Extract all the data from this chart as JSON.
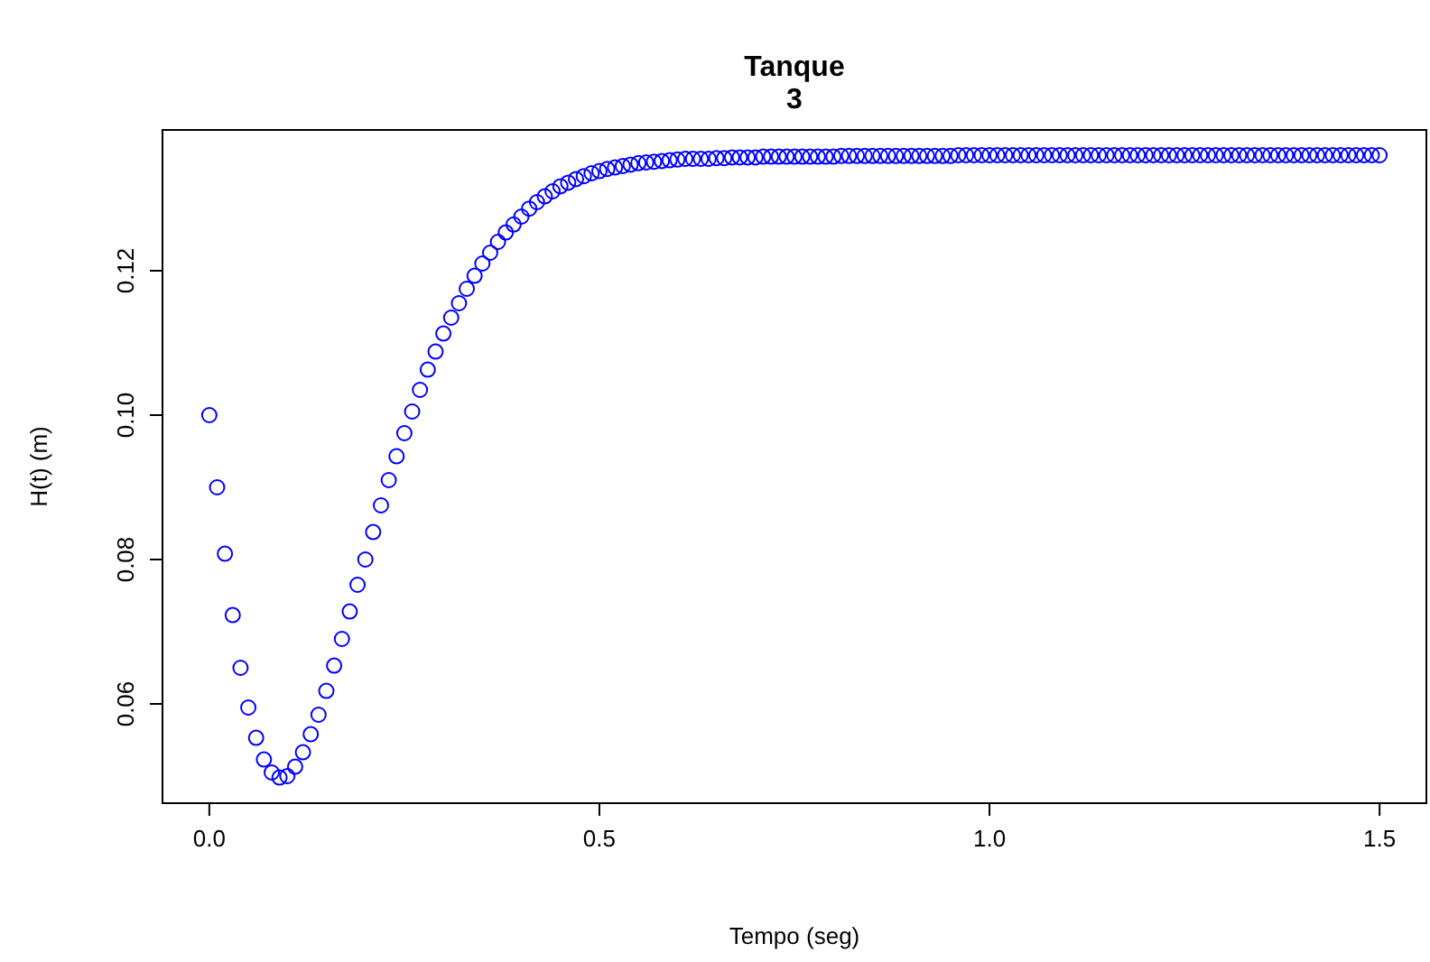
{
  "chart_data": {
    "type": "scatter",
    "title": "Tanque\n3",
    "xlabel": "Tempo (seg)",
    "ylabel": "H(t) (m)",
    "marker": "circle",
    "grid": false,
    "xlim": [
      -0.06,
      1.56
    ],
    "ylim": [
      0.04625,
      0.1395
    ],
    "xticks": [
      {
        "value": 0,
        "label": "0.0"
      },
      0.5,
      {
        "value": 1,
        "label": "1.0"
      },
      1.5
    ],
    "yticks": [
      0.06,
      0.08,
      {
        "value": 0.1,
        "label": "0.10"
      },
      0.12
    ],
    "x": [
      0,
      0.01,
      0.02,
      0.03,
      0.04,
      0.05,
      0.06,
      0.07,
      0.08,
      0.09,
      0.1,
      0.11,
      0.12,
      0.13,
      0.14,
      0.15,
      0.16,
      0.17,
      0.18,
      0.19,
      0.2,
      0.21,
      0.22,
      0.23,
      0.24,
      0.25,
      0.26,
      0.27,
      0.28,
      0.29,
      0.3,
      0.31,
      0.32,
      0.33,
      0.34,
      0.35,
      0.36,
      0.37,
      0.38,
      0.39,
      0.4,
      0.41,
      0.42,
      0.43,
      0.44,
      0.45,
      0.46,
      0.47,
      0.48,
      0.49,
      0.5,
      0.51,
      0.52,
      0.53,
      0.54,
      0.55,
      0.56,
      0.57,
      0.58,
      0.59,
      0.6,
      0.61,
      0.62,
      0.63,
      0.64,
      0.65,
      0.66,
      0.67,
      0.68,
      0.69,
      0.7,
      0.71,
      0.72,
      0.73,
      0.74,
      0.75,
      0.76,
      0.77,
      0.78,
      0.79,
      0.8,
      0.81,
      0.82,
      0.83,
      0.84,
      0.85,
      0.86,
      0.87,
      0.88,
      0.89,
      0.9,
      0.91,
      0.92,
      0.93,
      0.94,
      0.95,
      0.96,
      0.97,
      0.98,
      0.99,
      1,
      1.01,
      1.02,
      1.03,
      1.04,
      1.05,
      1.06,
      1.07,
      1.08,
      1.09,
      1.1,
      1.11,
      1.12,
      1.13,
      1.14,
      1.15,
      1.16,
      1.17,
      1.18,
      1.19,
      1.2,
      1.21,
      1.22,
      1.23,
      1.24,
      1.25,
      1.26,
      1.27,
      1.28,
      1.29,
      1.3,
      1.31,
      1.32,
      1.33,
      1.34,
      1.35,
      1.36,
      1.37,
      1.38,
      1.39,
      1.4,
      1.41,
      1.42,
      1.43,
      1.44,
      1.45,
      1.46,
      1.47,
      1.48,
      1.49,
      1.5
    ],
    "series": [
      {
        "color": "#0000ff",
        "values": [
          0.1,
          0.09,
          0.0808,
          0.0723,
          0.065,
          0.0595,
          0.0553,
          0.0523,
          0.0505,
          0.0498,
          0.05,
          0.0513,
          0.0533,
          0.0558,
          0.0585,
          0.0618,
          0.0653,
          0.069,
          0.0728,
          0.0765,
          0.08,
          0.0838,
          0.0875,
          0.091,
          0.0943,
          0.0975,
          0.1005,
          0.1035,
          0.1063,
          0.1088,
          0.1113,
          0.1135,
          0.1155,
          0.1175,
          0.1193,
          0.121,
          0.1225,
          0.124,
          0.1253,
          0.1264,
          0.1275,
          0.1286,
          0.1295,
          0.1303,
          0.131,
          0.1317,
          0.1322,
          0.1327,
          0.1331,
          0.1335,
          0.1338,
          0.1341,
          0.1343,
          0.1345,
          0.1347,
          0.1349,
          0.135,
          0.1351,
          0.1352,
          0.1353,
          0.1354,
          0.1355,
          0.1355,
          0.1355,
          0.1355,
          0.1356,
          0.1356,
          0.1357,
          0.1357,
          0.1357,
          0.1357,
          0.1358,
          0.1358,
          0.1358,
          0.1358,
          0.1358,
          0.1358,
          0.1358,
          0.1358,
          0.1358,
          0.1358,
          0.1359,
          0.1359,
          0.1359,
          0.1359,
          0.1359,
          0.1359,
          0.1359,
          0.1359,
          0.1359,
          0.1359,
          0.1359,
          0.1359,
          0.1359,
          0.1359,
          0.1359,
          0.136,
          0.136,
          0.136,
          0.136,
          0.136,
          0.136,
          0.136,
          0.136,
          0.136,
          0.136,
          0.136,
          0.136,
          0.136,
          0.136,
          0.136,
          0.136,
          0.136,
          0.136,
          0.136,
          0.136,
          0.136,
          0.136,
          0.136,
          0.136,
          0.136,
          0.136,
          0.136,
          0.136,
          0.136,
          0.136,
          0.136,
          0.136,
          0.136,
          0.136,
          0.136,
          0.136,
          0.136,
          0.136,
          0.136,
          0.136,
          0.136,
          0.136,
          0.136,
          0.136,
          0.136,
          0.136,
          0.136,
          0.136,
          0.136,
          0.136,
          0.136,
          0.136,
          0.136,
          0.136,
          0.136
        ]
      }
    ]
  }
}
